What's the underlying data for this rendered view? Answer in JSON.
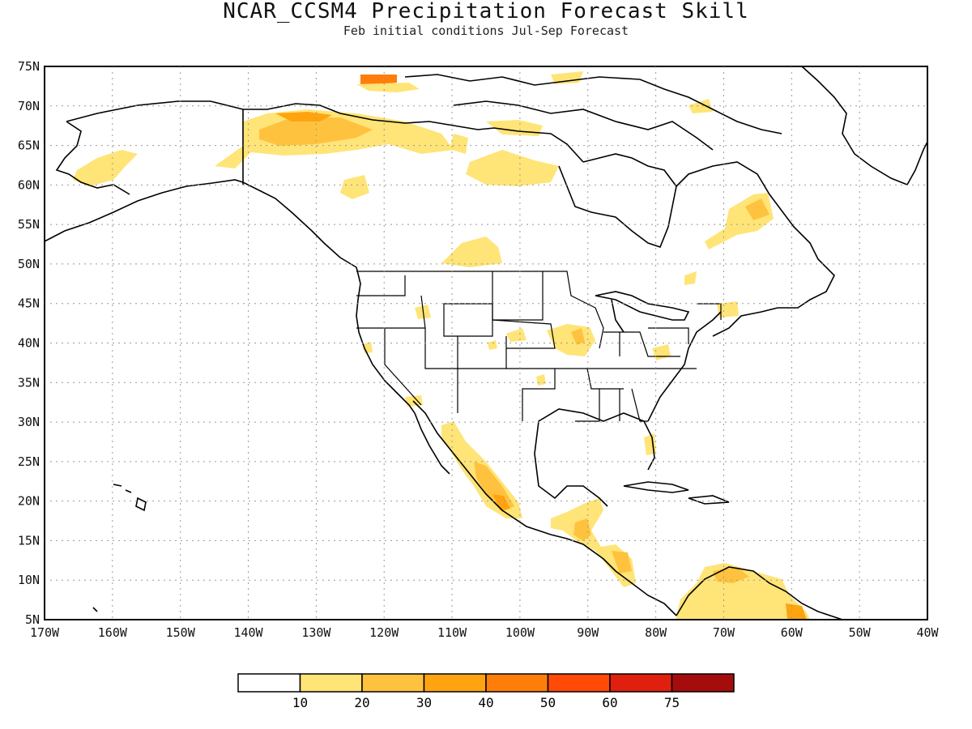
{
  "title": "NCAR_CCSM4 Precipitation Forecast Skill",
  "subtitle": "Feb initial conditions   Jul-Sep Forecast",
  "map": {
    "lon_range": [
      -170,
      -40
    ],
    "lat_range": [
      5,
      75
    ],
    "lat_labels": [
      "5N",
      "10N",
      "15N",
      "20N",
      "25N",
      "30N",
      "35N",
      "40N",
      "45N",
      "50N",
      "55N",
      "60N",
      "65N",
      "70N",
      "75N"
    ],
    "lon_labels": [
      "170W",
      "160W",
      "150W",
      "140W",
      "130W",
      "120W",
      "110W",
      "100W",
      "90W",
      "80W",
      "70W",
      "60W",
      "50W",
      "40W"
    ],
    "grid": "dotted"
  },
  "colorbar": {
    "labels": [
      "10",
      "20",
      "30",
      "40",
      "50",
      "60",
      "75"
    ],
    "colors": [
      "#ffffff",
      "#ffe477",
      "#ffc23f",
      "#ffa410",
      "#ff7e0a",
      "#ff4a08",
      "#e0200e",
      "#a50c0c"
    ]
  }
}
